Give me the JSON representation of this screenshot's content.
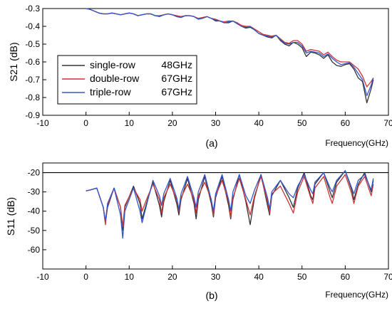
{
  "chart_data": [
    {
      "type": "line",
      "panel_label": "(a)",
      "xlabel": "Frequency(GHz)",
      "ylabel": "S21 (dB)",
      "xlim": [
        -10,
        70
      ],
      "ylim": [
        -0.9,
        -0.3
      ],
      "xticks": [
        -10,
        0,
        10,
        20,
        30,
        40,
        50,
        60,
        70
      ],
      "yticks": [
        -0.3,
        -0.4,
        -0.5,
        -0.6,
        -0.7,
        -0.8,
        -0.9
      ],
      "xtick_labels": [
        "-10",
        "0",
        "10",
        "20",
        "30",
        "40",
        "50",
        "60",
        "70"
      ],
      "ytick_labels": [
        "-0.3",
        "-0.4",
        "-0.5",
        "-0.6",
        "-0.7",
        "-0.8",
        "-0.9"
      ],
      "grid": false,
      "legend_position": "left",
      "series": [
        {
          "name": "single-row",
          "note": "48GHz",
          "color": "#333333",
          "x": [
            0,
            1,
            2,
            3,
            4,
            5,
            6,
            7,
            8,
            9,
            10,
            11,
            12,
            13,
            14,
            15,
            16,
            17,
            18,
            19,
            20,
            21,
            22,
            23,
            24,
            25,
            26,
            27,
            28,
            29,
            30,
            31,
            32,
            33,
            34,
            35,
            36,
            37,
            38,
            39,
            40,
            41,
            42,
            43,
            44,
            45,
            46,
            47,
            48,
            49,
            50,
            51,
            52,
            53,
            54,
            55,
            56,
            57,
            58,
            59,
            60,
            61,
            62,
            63,
            64,
            65,
            66,
            66.5
          ],
          "y": [
            -0.3,
            -0.305,
            -0.315,
            -0.325,
            -0.33,
            -0.33,
            -0.325,
            -0.33,
            -0.335,
            -0.33,
            -0.325,
            -0.33,
            -0.34,
            -0.335,
            -0.33,
            -0.33,
            -0.34,
            -0.345,
            -0.335,
            -0.33,
            -0.335,
            -0.345,
            -0.35,
            -0.34,
            -0.34,
            -0.345,
            -0.36,
            -0.355,
            -0.345,
            -0.355,
            -0.37,
            -0.37,
            -0.38,
            -0.38,
            -0.37,
            -0.385,
            -0.4,
            -0.41,
            -0.405,
            -0.42,
            -0.44,
            -0.45,
            -0.46,
            -0.465,
            -0.45,
            -0.48,
            -0.5,
            -0.51,
            -0.49,
            -0.5,
            -0.52,
            -0.57,
            -0.545,
            -0.55,
            -0.56,
            -0.58,
            -0.56,
            -0.6,
            -0.62,
            -0.625,
            -0.615,
            -0.61,
            -0.64,
            -0.69,
            -0.71,
            -0.83,
            -0.75,
            -0.7
          ]
        },
        {
          "name": "double-row",
          "note": "67GHz",
          "color": "#cc3333",
          "x": [
            0,
            1,
            2,
            3,
            4,
            5,
            6,
            7,
            8,
            9,
            10,
            11,
            12,
            13,
            14,
            15,
            16,
            17,
            18,
            19,
            20,
            21,
            22,
            23,
            24,
            25,
            26,
            27,
            28,
            29,
            30,
            31,
            32,
            33,
            34,
            35,
            36,
            37,
            38,
            39,
            40,
            41,
            42,
            43,
            44,
            45,
            46,
            47,
            48,
            49,
            50,
            51,
            52,
            53,
            54,
            55,
            56,
            57,
            58,
            59,
            60,
            61,
            62,
            63,
            64,
            65,
            66,
            66.5
          ],
          "y": [
            -0.3,
            -0.305,
            -0.315,
            -0.325,
            -0.33,
            -0.33,
            -0.325,
            -0.33,
            -0.335,
            -0.33,
            -0.325,
            -0.33,
            -0.34,
            -0.335,
            -0.33,
            -0.33,
            -0.34,
            -0.34,
            -0.335,
            -0.33,
            -0.335,
            -0.34,
            -0.345,
            -0.34,
            -0.34,
            -0.345,
            -0.355,
            -0.35,
            -0.345,
            -0.355,
            -0.36,
            -0.37,
            -0.375,
            -0.37,
            -0.37,
            -0.38,
            -0.395,
            -0.4,
            -0.4,
            -0.415,
            -0.43,
            -0.445,
            -0.45,
            -0.455,
            -0.45,
            -0.47,
            -0.49,
            -0.495,
            -0.48,
            -0.48,
            -0.5,
            -0.54,
            -0.53,
            -0.535,
            -0.54,
            -0.56,
            -0.545,
            -0.57,
            -0.59,
            -0.6,
            -0.6,
            -0.6,
            -0.62,
            -0.64,
            -0.68,
            -0.74,
            -0.71,
            -0.69
          ]
        },
        {
          "name": "triple-row",
          "note": "67GHz",
          "color": "#3355cc",
          "x": [
            0,
            1,
            2,
            3,
            4,
            5,
            6,
            7,
            8,
            9,
            10,
            11,
            12,
            13,
            14,
            15,
            16,
            17,
            18,
            19,
            20,
            21,
            22,
            23,
            24,
            25,
            26,
            27,
            28,
            29,
            30,
            31,
            32,
            33,
            34,
            35,
            36,
            37,
            38,
            39,
            40,
            41,
            42,
            43,
            44,
            45,
            46,
            47,
            48,
            49,
            50,
            51,
            52,
            53,
            54,
            55,
            56,
            57,
            58,
            59,
            60,
            61,
            62,
            63,
            64,
            65,
            66,
            66.5
          ],
          "y": [
            -0.3,
            -0.305,
            -0.315,
            -0.325,
            -0.33,
            -0.33,
            -0.325,
            -0.33,
            -0.335,
            -0.33,
            -0.325,
            -0.33,
            -0.34,
            -0.335,
            -0.33,
            -0.33,
            -0.34,
            -0.345,
            -0.335,
            -0.33,
            -0.335,
            -0.345,
            -0.35,
            -0.34,
            -0.34,
            -0.345,
            -0.36,
            -0.355,
            -0.345,
            -0.355,
            -0.365,
            -0.37,
            -0.38,
            -0.375,
            -0.37,
            -0.385,
            -0.4,
            -0.405,
            -0.4,
            -0.42,
            -0.44,
            -0.45,
            -0.455,
            -0.46,
            -0.45,
            -0.475,
            -0.495,
            -0.5,
            -0.49,
            -0.49,
            -0.51,
            -0.55,
            -0.54,
            -0.545,
            -0.55,
            -0.57,
            -0.555,
            -0.58,
            -0.6,
            -0.615,
            -0.61,
            -0.605,
            -0.63,
            -0.665,
            -0.7,
            -0.79,
            -0.73,
            -0.69
          ]
        }
      ]
    },
    {
      "type": "line",
      "panel_label": "(b)",
      "xlabel": "Frequency(GHz)",
      "ylabel": "S11 (dB)",
      "xlim": [
        -10,
        70
      ],
      "ylim": [
        -70,
        -15
      ],
      "xticks": [
        -10,
        0,
        10,
        20,
        30,
        40,
        50,
        60,
        70
      ],
      "yticks": [
        -20,
        -30,
        -40,
        -50,
        -60
      ],
      "xtick_labels": [
        "-10",
        "0",
        "10",
        "20",
        "30",
        "40",
        "50",
        "60",
        "70"
      ],
      "ytick_labels": [
        "-20",
        "-30",
        "-40",
        "-50",
        "-60"
      ],
      "reference_line_y": -20,
      "grid": false,
      "series": [
        {
          "name": "single-row",
          "color": "#333333",
          "x": [
            0,
            1,
            2.5,
            4,
            4.5,
            5,
            6.5,
            8,
            8.5,
            9,
            11,
            12.5,
            13,
            14,
            15.5,
            17,
            17.5,
            18,
            19.5,
            21,
            21.5,
            22,
            23.5,
            25,
            25.5,
            26,
            27.5,
            29,
            29.5,
            30,
            31.5,
            33,
            33.5,
            34,
            35.5,
            37,
            38,
            39,
            40.5,
            42,
            42.5,
            43,
            45,
            47,
            48,
            49,
            50.5,
            52,
            52.5,
            53,
            55,
            56.5,
            57,
            58,
            60,
            61.5,
            62,
            63,
            64.5,
            66,
            66.5
          ],
          "y": [
            -29.5,
            -29,
            -28,
            -38,
            -46,
            -38,
            -28,
            -38,
            -50,
            -38,
            -27,
            -36,
            -44,
            -36,
            -25,
            -37,
            -43,
            -35,
            -24,
            -36,
            -42,
            -34,
            -23,
            -36,
            -44,
            -34,
            -22,
            -36,
            -43,
            -33,
            -22,
            -37,
            -44,
            -34,
            -21,
            -35,
            -47,
            -33,
            -21,
            -37,
            -42,
            -32,
            -24,
            -33,
            -38,
            -28,
            -20,
            -32,
            -34,
            -26,
            -20,
            -30,
            -33,
            -25,
            -19,
            -29,
            -34,
            -26,
            -20,
            -30,
            -24
          ]
        },
        {
          "name": "double-row",
          "color": "#cc3333",
          "x": [
            0,
            1,
            2.5,
            4,
            4.5,
            5,
            6.5,
            8,
            8.5,
            9,
            11,
            12.5,
            13,
            14,
            15.5,
            17,
            17.5,
            18,
            19.5,
            21,
            21.5,
            22,
            23.5,
            25,
            25.5,
            26,
            27.5,
            29,
            29.5,
            30,
            31.5,
            33,
            33.5,
            34,
            35.5,
            37,
            38,
            39,
            40.5,
            42,
            42.5,
            43,
            45,
            47,
            48,
            49,
            50.5,
            52,
            52.5,
            53,
            55,
            56.5,
            57,
            58,
            60,
            61.5,
            62,
            63,
            64.5,
            66,
            66.5
          ],
          "y": [
            -29.5,
            -29,
            -28,
            -38,
            -47,
            -37,
            -28,
            -38,
            -48,
            -37,
            -28,
            -34,
            -40,
            -34,
            -26,
            -34,
            -41,
            -33,
            -26,
            -34,
            -40,
            -33,
            -26,
            -34,
            -41,
            -32,
            -25,
            -34,
            -42,
            -32,
            -24,
            -35,
            -43,
            -33,
            -23,
            -34,
            -42,
            -32,
            -22,
            -35,
            -41,
            -31,
            -27,
            -36,
            -41,
            -30,
            -22,
            -33,
            -36,
            -28,
            -22,
            -33,
            -36,
            -27,
            -21,
            -31,
            -36,
            -27,
            -22,
            -32,
            -26
          ]
        },
        {
          "name": "triple-row",
          "color": "#3355cc",
          "x": [
            0,
            1,
            2.5,
            4,
            4.5,
            5,
            6.5,
            8,
            8.5,
            9,
            11,
            12.5,
            13,
            14,
            15.5,
            17,
            17.5,
            18,
            19.5,
            21,
            21.5,
            22,
            23.5,
            25,
            25.5,
            26,
            27.5,
            29,
            29.5,
            30,
            31.5,
            33,
            33.5,
            34,
            35.5,
            37,
            38,
            39,
            40.5,
            42,
            42.5,
            43,
            45,
            47,
            48,
            49,
            50.5,
            52,
            52.5,
            53,
            55,
            56.5,
            57,
            58,
            60,
            61.5,
            62,
            63,
            64.5,
            66,
            66.5
          ],
          "y": [
            -29.5,
            -29,
            -28,
            -38,
            -45,
            -36,
            -28,
            -42,
            -54,
            -40,
            -28,
            -40,
            -46,
            -37,
            -24,
            -32,
            -37,
            -31,
            -23,
            -33,
            -39,
            -31,
            -22,
            -33,
            -38,
            -30,
            -21,
            -34,
            -40,
            -31,
            -21,
            -34,
            -40,
            -30,
            -21,
            -32,
            -36,
            -29,
            -21,
            -33,
            -39,
            -30,
            -24,
            -31,
            -33,
            -27,
            -21,
            -29,
            -31,
            -25,
            -20,
            -28,
            -30,
            -24,
            -19,
            -28,
            -31,
            -24,
            -21,
            -29,
            -23
          ]
        }
      ]
    }
  ]
}
